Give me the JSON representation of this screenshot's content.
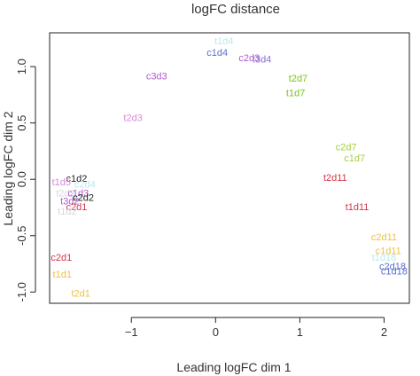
{
  "chart_data": {
    "type": "scatter",
    "title": "logFC distance",
    "xlabel": "Leading logFC dim 1",
    "ylabel": "Leading logFC dim 2",
    "xlim": [
      -1.97,
      2.3
    ],
    "ylim": [
      -1.1,
      1.3
    ],
    "xticks": [
      -1,
      0,
      1,
      2
    ],
    "yticks": [
      -1.0,
      -0.5,
      0.0,
      0.5,
      1.0
    ],
    "ytick_labels": [
      "-1.0",
      "-0.5",
      "0.0",
      "0.5",
      "1.0"
    ],
    "xtick_labels": [
      "−1",
      "0",
      "1",
      "2"
    ],
    "grid": false,
    "points": [
      {
        "label": "t1d4",
        "x": 0.1,
        "y": 1.22,
        "color": "#bde8ef"
      },
      {
        "label": "c1d4",
        "x": 0.02,
        "y": 1.12,
        "color": "#5a6fd0"
      },
      {
        "label": "c2d3",
        "x": 0.4,
        "y": 1.07,
        "color": "#b05ad0"
      },
      {
        "label": "t3d4",
        "x": 0.55,
        "y": 1.06,
        "color": "#8a6fd0"
      },
      {
        "label": "c3d3",
        "x": -0.7,
        "y": 0.91,
        "color": "#b05ad0"
      },
      {
        "label": "t2d7",
        "x": 0.98,
        "y": 0.89,
        "color": "#7ac020"
      },
      {
        "label": "t1d7",
        "x": 0.95,
        "y": 0.76,
        "color": "#7ac020"
      },
      {
        "label": "t2d3",
        "x": -0.98,
        "y": 0.54,
        "color": "#d98ad8"
      },
      {
        "label": "c2d7",
        "x": 1.55,
        "y": 0.28,
        "color": "#a5cf3c"
      },
      {
        "label": "c1d7",
        "x": 1.65,
        "y": 0.18,
        "color": "#a5cf3c"
      },
      {
        "label": "t2d11",
        "x": 1.42,
        "y": 0.01,
        "color": "#d63347"
      },
      {
        "label": "t1d11",
        "x": 1.68,
        "y": -0.25,
        "color": "#d63347"
      },
      {
        "label": "c2d11",
        "x": 2.0,
        "y": -0.52,
        "color": "#f0c040"
      },
      {
        "label": "c1d11",
        "x": 2.05,
        "y": -0.64,
        "color": "#f0c040"
      },
      {
        "label": "t1d18",
        "x": 2.0,
        "y": -0.7,
        "color": "#bde8ef"
      },
      {
        "label": "c2d18",
        "x": 2.1,
        "y": -0.78,
        "color": "#5a6fd0"
      },
      {
        "label": "c1d18",
        "x": 2.12,
        "y": -0.82,
        "color": "#5a6fd0"
      },
      {
        "label": "c1d2",
        "x": -1.65,
        "y": 0.0,
        "color": "#222222"
      },
      {
        "label": "t1d5",
        "x": -1.83,
        "y": -0.03,
        "color": "#d98ad8"
      },
      {
        "label": "c2d4",
        "x": -1.55,
        "y": -0.05,
        "color": "#bde8ef"
      },
      {
        "label": "t2d2",
        "x": -1.78,
        "y": -0.13,
        "color": "#d8d8d8"
      },
      {
        "label": "c1d3",
        "x": -1.63,
        "y": -0.13,
        "color": "#b05ad0"
      },
      {
        "label": "c2d2",
        "x": -1.57,
        "y": -0.17,
        "color": "#222222"
      },
      {
        "label": "t3d2",
        "x": -1.73,
        "y": -0.2,
        "color": "#b05ad0"
      },
      {
        "label": "c2d1",
        "x": -1.65,
        "y": -0.25,
        "color": "#d63347"
      },
      {
        "label": "t1d2",
        "x": -1.76,
        "y": -0.29,
        "color": "#d8d8d8"
      },
      {
        "label": "c2d1",
        "x": -1.83,
        "y": -0.7,
        "color": "#d63347"
      },
      {
        "label": "t1d1",
        "x": -1.82,
        "y": -0.85,
        "color": "#f0c040"
      },
      {
        "label": "t2d1",
        "x": -1.6,
        "y": -1.02,
        "color": "#f0c040"
      }
    ]
  }
}
